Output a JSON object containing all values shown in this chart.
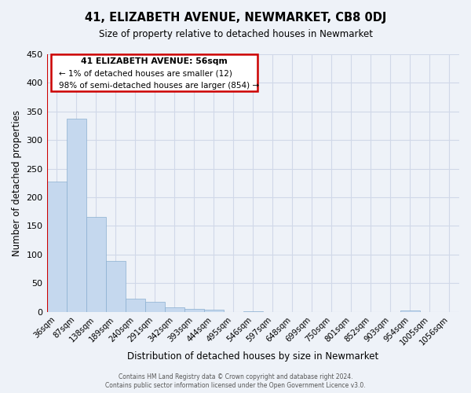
{
  "title": "41, ELIZABETH AVENUE, NEWMARKET, CB8 0DJ",
  "subtitle": "Size of property relative to detached houses in Newmarket",
  "xlabel": "Distribution of detached houses by size in Newmarket",
  "ylabel": "Number of detached properties",
  "bar_labels": [
    "36sqm",
    "87sqm",
    "138sqm",
    "189sqm",
    "240sqm",
    "291sqm",
    "342sqm",
    "393sqm",
    "444sqm",
    "495sqm",
    "546sqm",
    "597sqm",
    "648sqm",
    "699sqm",
    "750sqm",
    "801sqm",
    "852sqm",
    "903sqm",
    "954sqm",
    "1005sqm",
    "1056sqm"
  ],
  "bar_values": [
    228,
    338,
    165,
    89,
    23,
    17,
    7,
    5,
    3,
    0,
    1,
    0,
    0,
    0,
    0,
    0,
    0,
    0,
    2,
    0,
    0
  ],
  "bar_color": "#c5d8ee",
  "bar_edge_color": "#8aafd0",
  "highlight_color": "#cc0000",
  "ylim": [
    0,
    450
  ],
  "yticks": [
    0,
    50,
    100,
    150,
    200,
    250,
    300,
    350,
    400,
    450
  ],
  "annotation_title": "41 ELIZABETH AVENUE: 56sqm",
  "annotation_line1": "← 1% of detached houses are smaller (12)",
  "annotation_line2": "98% of semi-detached houses are larger (854) →",
  "footer1": "Contains HM Land Registry data © Crown copyright and database right 2024.",
  "footer2": "Contains public sector information licensed under the Open Government Licence v3.0.",
  "grid_color": "#d0d8e8",
  "background_color": "#eef2f8"
}
